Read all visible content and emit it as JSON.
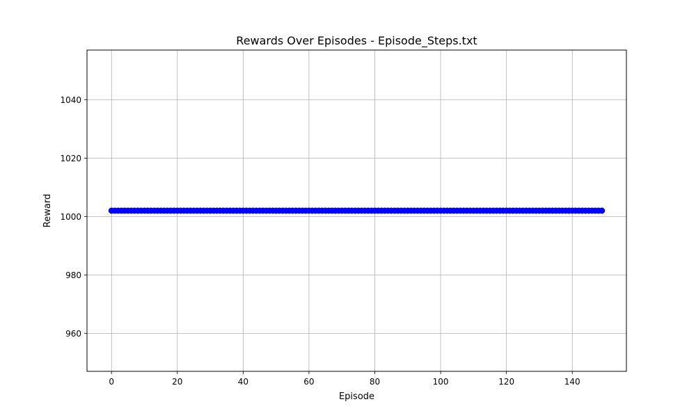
{
  "chart_data": {
    "type": "line",
    "title": "Rewards Over Episodes - Episode_Steps.txt",
    "xlabel": "Episode",
    "ylabel": "Reward",
    "xlim": [
      -7.45,
      156.45
    ],
    "ylim": [
      947,
      1057
    ],
    "xticks": [
      0,
      20,
      40,
      60,
      80,
      100,
      120,
      140
    ],
    "yticks": [
      960,
      980,
      1000,
      1020,
      1040
    ],
    "grid": true,
    "series": [
      {
        "x_start": 0,
        "x_end": 149,
        "x_step": 1,
        "constant_value": 1002,
        "color": "#0000ff",
        "marker": "o",
        "line": "solid"
      }
    ]
  },
  "colors": {
    "series": "#0000ff",
    "grid": "#b0b0b0",
    "axes": "#000000"
  }
}
